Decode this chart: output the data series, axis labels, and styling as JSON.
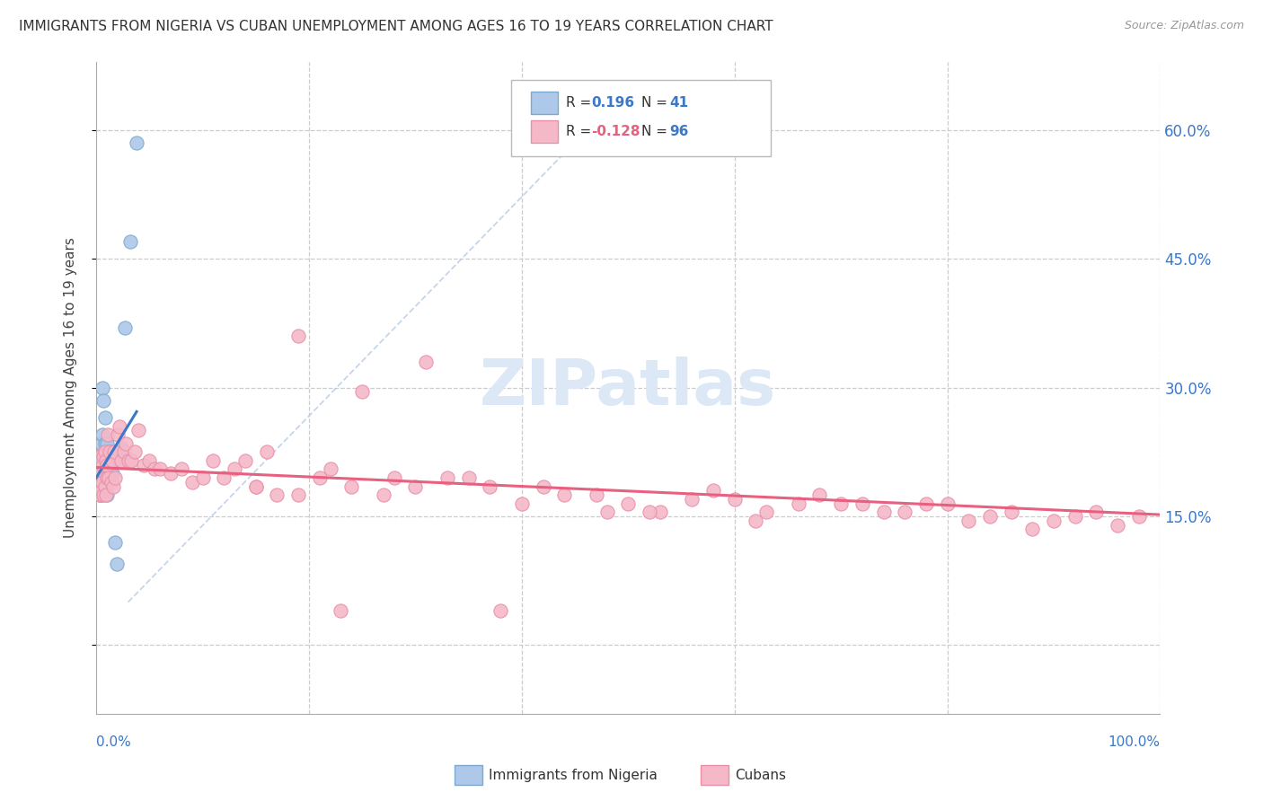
{
  "title": "IMMIGRANTS FROM NIGERIA VS CUBAN UNEMPLOYMENT AMONG AGES 16 TO 19 YEARS CORRELATION CHART",
  "source": "Source: ZipAtlas.com",
  "ylabel": "Unemployment Among Ages 16 to 19 years",
  "ytick_values": [
    0.0,
    0.15,
    0.3,
    0.45,
    0.6
  ],
  "ytick_labels": [
    "",
    "15.0%",
    "30.0%",
    "45.0%",
    "60.0%"
  ],
  "xlim": [
    0.0,
    1.0
  ],
  "ylim": [
    -0.08,
    0.68
  ],
  "color_nigeria": "#adc8e8",
  "color_nigeria_edge": "#7aaad0",
  "color_cuban": "#f5b8c8",
  "color_cuban_edge": "#e890a8",
  "color_nigeria_line": "#3a78c9",
  "color_cuban_line": "#e86080",
  "color_dashed": "#b8cce4",
  "grid_color": "#cccccc",
  "watermark_color": "#dce8f5",
  "nigeria_x": [
    0.001,
    0.002,
    0.003,
    0.003,
    0.004,
    0.004,
    0.005,
    0.005,
    0.005,
    0.005,
    0.006,
    0.006,
    0.006,
    0.007,
    0.007,
    0.007,
    0.008,
    0.008,
    0.008,
    0.009,
    0.009,
    0.009,
    0.01,
    0.01,
    0.01,
    0.01,
    0.011,
    0.012,
    0.013,
    0.014,
    0.015,
    0.016,
    0.017,
    0.018,
    0.019,
    0.02,
    0.022,
    0.024,
    0.027,
    0.032,
    0.038
  ],
  "nigeria_y": [
    0.2,
    0.185,
    0.175,
    0.205,
    0.19,
    0.22,
    0.21,
    0.235,
    0.195,
    0.175,
    0.215,
    0.245,
    0.3,
    0.19,
    0.215,
    0.285,
    0.195,
    0.235,
    0.265,
    0.21,
    0.225,
    0.195,
    0.175,
    0.19,
    0.21,
    0.235,
    0.22,
    0.215,
    0.225,
    0.21,
    0.2,
    0.215,
    0.225,
    0.12,
    0.095,
    0.22,
    0.215,
    0.23,
    0.37,
    0.47,
    0.585
  ],
  "cuban_x": [
    0.001,
    0.002,
    0.003,
    0.003,
    0.004,
    0.004,
    0.005,
    0.005,
    0.006,
    0.006,
    0.007,
    0.007,
    0.008,
    0.008,
    0.009,
    0.009,
    0.01,
    0.01,
    0.011,
    0.012,
    0.013,
    0.014,
    0.015,
    0.016,
    0.017,
    0.018,
    0.02,
    0.022,
    0.024,
    0.026,
    0.028,
    0.03,
    0.033,
    0.036,
    0.04,
    0.045,
    0.05,
    0.055,
    0.06,
    0.07,
    0.08,
    0.09,
    0.1,
    0.12,
    0.13,
    0.15,
    0.17,
    0.19,
    0.21,
    0.24,
    0.27,
    0.3,
    0.33,
    0.37,
    0.4,
    0.44,
    0.47,
    0.5,
    0.53,
    0.56,
    0.6,
    0.63,
    0.66,
    0.7,
    0.74,
    0.78,
    0.82,
    0.86,
    0.9,
    0.94,
    0.98,
    0.25,
    0.11,
    0.14,
    0.16,
    0.22,
    0.19,
    0.31,
    0.28,
    0.35,
    0.42,
    0.48,
    0.52,
    0.58,
    0.62,
    0.68,
    0.72,
    0.76,
    0.8,
    0.84,
    0.88,
    0.92,
    0.96,
    0.15,
    0.23,
    0.38
  ],
  "cuban_y": [
    0.2,
    0.22,
    0.175,
    0.215,
    0.185,
    0.22,
    0.18,
    0.215,
    0.19,
    0.21,
    0.175,
    0.22,
    0.185,
    0.225,
    0.175,
    0.215,
    0.195,
    0.21,
    0.245,
    0.195,
    0.225,
    0.19,
    0.215,
    0.185,
    0.225,
    0.195,
    0.245,
    0.255,
    0.215,
    0.225,
    0.235,
    0.215,
    0.215,
    0.225,
    0.25,
    0.21,
    0.215,
    0.205,
    0.205,
    0.2,
    0.205,
    0.19,
    0.195,
    0.195,
    0.205,
    0.185,
    0.175,
    0.175,
    0.195,
    0.185,
    0.175,
    0.185,
    0.195,
    0.185,
    0.165,
    0.175,
    0.175,
    0.165,
    0.155,
    0.17,
    0.17,
    0.155,
    0.165,
    0.165,
    0.155,
    0.165,
    0.145,
    0.155,
    0.145,
    0.155,
    0.15,
    0.295,
    0.215,
    0.215,
    0.225,
    0.205,
    0.36,
    0.33,
    0.195,
    0.195,
    0.185,
    0.155,
    0.155,
    0.18,
    0.145,
    0.175,
    0.165,
    0.155,
    0.165,
    0.15,
    0.135,
    0.15,
    0.14,
    0.185,
    0.04,
    0.04
  ]
}
